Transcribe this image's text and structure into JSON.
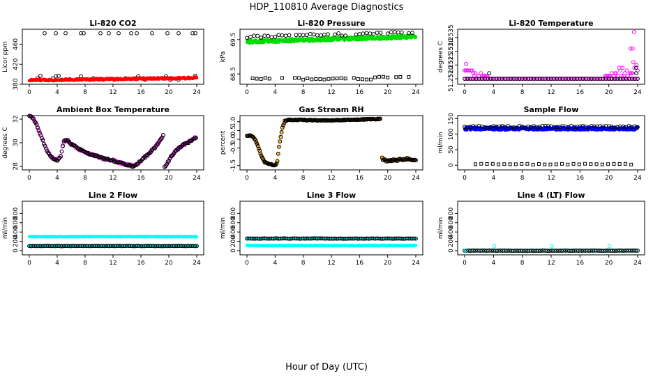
{
  "figure": {
    "title": "HDP_110810  Average Diagnostics",
    "xlabel": "Hour of Day (UTC)"
  },
  "colors": {
    "black": "#000000",
    "red": "#ff0000",
    "green": "#00dd00",
    "magenta": "#ff00ff",
    "orange": "#ffa500",
    "blue": "#0000ff",
    "cyan": "#00ffff"
  },
  "chart_data": [
    {
      "type": "scatter",
      "title": "Li-820 CO2",
      "ylabel": "Licor ppm",
      "xlim": [
        0,
        24
      ],
      "ylim": [
        380,
        490
      ],
      "xticks": [
        0,
        4,
        8,
        12,
        16,
        20,
        24
      ],
      "yticks": [
        380,
        420,
        460
      ],
      "ytick_labels": [
        "380",
        "420",
        "460"
      ],
      "series": [
        {
          "name": "outlier",
          "color": "black",
          "shape": "circle",
          "points": [
            [
              2.2,
              482
            ],
            [
              3.8,
              482
            ],
            [
              5.2,
              482
            ],
            [
              7.4,
              482
            ],
            [
              7.8,
              482
            ],
            [
              10.2,
              482
            ],
            [
              11.4,
              482
            ],
            [
              12.8,
              482
            ],
            [
              14.6,
              482
            ],
            [
              15.4,
              482
            ],
            [
              17.6,
              482
            ],
            [
              19.8,
              482
            ],
            [
              21.4,
              482
            ],
            [
              23.4,
              482
            ],
            [
              23.8,
              482
            ]
          ]
        },
        {
          "name": "scattered",
          "color": "black",
          "shape": "circle",
          "points": [
            [
              1.2,
              392
            ],
            [
              1.6,
              397
            ],
            [
              3.4,
              392
            ],
            [
              3.8,
              396
            ],
            [
              4.2,
              397
            ],
            [
              4.6,
              389
            ],
            [
              5.8,
              390
            ],
            [
              7.4,
              396
            ],
            [
              9.2,
              392
            ],
            [
              10.6,
              389
            ],
            [
              12.2,
              389
            ],
            [
              13.8,
              392
            ],
            [
              15.6,
              396
            ],
            [
              16.6,
              389
            ],
            [
              17.8,
              392
            ],
            [
              19.6,
              396
            ],
            [
              20.2,
              389
            ],
            [
              21.4,
              389
            ],
            [
              23.0,
              392
            ],
            [
              23.8,
              397
            ]
          ]
        },
        {
          "name": "main",
          "color": "red",
          "shape": "dot",
          "func": "co2"
        }
      ]
    },
    {
      "type": "scatter",
      "title": "Li-820 Pressure",
      "ylabel": "kPa",
      "xlim": [
        0,
        24
      ],
      "ylim": [
        68.2,
        69.8
      ],
      "xticks": [
        0,
        4,
        8,
        12,
        16,
        20,
        24
      ],
      "yticks": [
        68.5,
        69.5
      ],
      "ytick_labels": [
        "68.5",
        "69.5"
      ],
      "series": [
        {
          "name": "low",
          "color": "black",
          "shape": "square",
          "func": "pres_low"
        },
        {
          "name": "main",
          "color": "green",
          "shape": "dot",
          "func": "pres_main"
        },
        {
          "name": "upper",
          "color": "black",
          "shape": "circle",
          "func": "pres_up"
        }
      ]
    },
    {
      "type": "scatter",
      "title": "Li-820 Temperature",
      "ylabel": "degrees C",
      "xlim": [
        0,
        24
      ],
      "ylim": [
        51.2518,
        51.2538
      ],
      "xticks": [
        0,
        4,
        8,
        12,
        16,
        20,
        24
      ],
      "yticks": [
        51.252,
        51.2525,
        51.253,
        51.2535
      ],
      "ytick_labels": [
        "51.2520",
        "51.2525",
        "51.2530",
        "51.2535"
      ],
      "series": [
        {
          "name": "baseline",
          "color": "magenta",
          "shape": "circle",
          "func": "temp_base"
        },
        {
          "name": "excursions",
          "color": "magenta",
          "shape": "circle",
          "func": "temp_exc"
        },
        {
          "name": "black",
          "color": "black",
          "shape": "circle",
          "func": "temp_black"
        }
      ]
    },
    {
      "type": "scatter",
      "title": "Ambient Box Temperature",
      "ylabel": "degrees C",
      "xlim": [
        0,
        24
      ],
      "ylim": [
        27.7,
        32.3
      ],
      "xticks": [
        0,
        4,
        8,
        12,
        16,
        20,
        24
      ],
      "yticks": [
        28,
        30,
        32
      ],
      "ytick_labels": [
        "28",
        "30",
        "32"
      ],
      "series": [
        {
          "name": "magenta",
          "color": "magenta",
          "shape": "circle",
          "func": "amb"
        },
        {
          "name": "black",
          "color": "black",
          "shape": "circle",
          "func": "amb"
        }
      ]
    },
    {
      "type": "scatter",
      "title": "Gas Stream RH",
      "ylabel": "percent",
      "xlim": [
        0,
        24
      ],
      "ylim": [
        -1.75,
        1.35
      ],
      "xticks": [
        0,
        4,
        8,
        12,
        16,
        20,
        24
      ],
      "yticks": [
        -1.5,
        -0.5,
        0.0,
        0.5,
        1.0
      ],
      "ytick_labels": [
        "-1.5",
        "-0.5",
        "0.0",
        "0.5",
        "1.0"
      ],
      "series": [
        {
          "name": "orange",
          "color": "orange",
          "shape": "x",
          "func": "rh"
        },
        {
          "name": "black",
          "color": "black",
          "shape": "circle",
          "func": "rh"
        }
      ]
    },
    {
      "type": "scatter",
      "title": "Sample Flow",
      "ylabel": "ml/min",
      "xlim": [
        0,
        24
      ],
      "ylim": [
        -15,
        160
      ],
      "xticks": [
        0,
        4,
        8,
        12,
        16,
        20,
        24
      ],
      "yticks": [
        0,
        50,
        100,
        150
      ],
      "ytick_labels": [
        "0",
        "50",
        "100",
        "150"
      ],
      "series": [
        {
          "name": "zero",
          "color": "black",
          "shape": "square",
          "func": "flow_zero"
        },
        {
          "name": "main",
          "color": "blue",
          "shape": "dot",
          "func": "flow_main"
        },
        {
          "name": "upper",
          "color": "black",
          "shape": "circle",
          "func": "flow_up"
        }
      ]
    },
    {
      "type": "scatter",
      "title": "Line 2 Flow",
      "ylabel": "ml/min",
      "xlim": [
        0,
        24
      ],
      "ylim": [
        -90,
        1060
      ],
      "xticks": [
        0,
        4,
        8,
        12,
        16,
        20,
        24
      ],
      "yticks": [
        0,
        200,
        400,
        600,
        800
      ],
      "ytick_labels": [
        "0",
        "200",
        "400",
        "600",
        "800"
      ],
      "series": [
        {
          "name": "cyan_high",
          "color": "cyan",
          "shape": "dot",
          "level": 300
        },
        {
          "name": "cyan_low",
          "color": "cyan",
          "shape": "dot",
          "level": 100
        },
        {
          "name": "black",
          "color": "black",
          "shape": "circle",
          "level": 100
        }
      ]
    },
    {
      "type": "scatter",
      "title": "Line 3 Flow",
      "ylabel": "ml/min",
      "xlim": [
        0,
        24
      ],
      "ylim": [
        -90,
        1060
      ],
      "xticks": [
        0,
        4,
        8,
        12,
        16,
        20,
        24
      ],
      "yticks": [
        0,
        200,
        400,
        600,
        800
      ],
      "ytick_labels": [
        "0",
        "200",
        "400",
        "600",
        "800"
      ],
      "series": [
        {
          "name": "cyan_high",
          "color": "cyan",
          "shape": "dot",
          "level": 260
        },
        {
          "name": "black",
          "color": "black",
          "shape": "circle",
          "level": 260
        },
        {
          "name": "cyan_low",
          "color": "cyan",
          "shape": "dot",
          "level": 110
        }
      ]
    },
    {
      "type": "scatter",
      "title": "Line 4 (LT) Flow",
      "ylabel": "ml/min",
      "xlim": [
        0,
        24
      ],
      "ylim": [
        -90,
        1060
      ],
      "xticks": [
        0,
        4,
        8,
        12,
        16,
        20,
        24
      ],
      "yticks": [
        0,
        200,
        400,
        600,
        800
      ],
      "ytick_labels": [
        "0",
        "200",
        "400",
        "600",
        "800"
      ],
      "series": [
        {
          "name": "cyan",
          "color": "cyan",
          "shape": "circle",
          "level": 0
        },
        {
          "name": "black",
          "color": "black",
          "shape": "circle",
          "level": 0
        },
        {
          "name": "spikes",
          "color": "cyan",
          "shape": "circle",
          "points": [
            [
              0.1,
              5
            ],
            [
              4.1,
              95
            ],
            [
              12.1,
              95
            ],
            [
              20.1,
              95
            ]
          ]
        }
      ]
    }
  ]
}
